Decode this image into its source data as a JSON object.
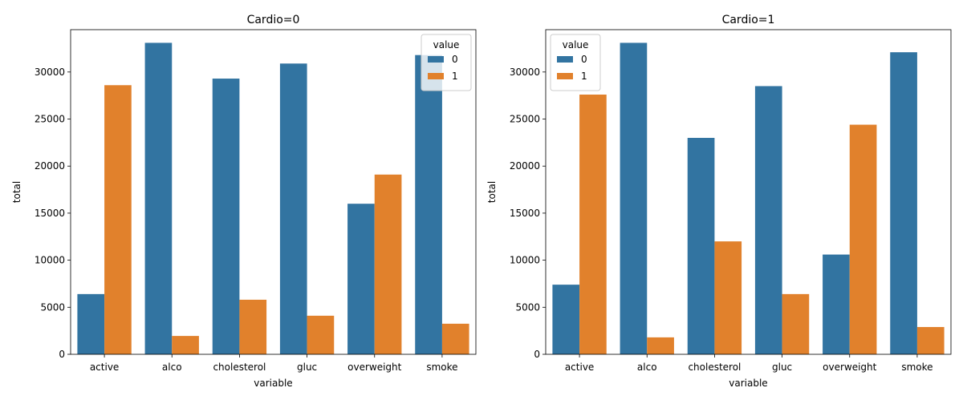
{
  "colors": {
    "series0": "#3274a1",
    "series1": "#e1812c"
  },
  "chart_data": [
    {
      "type": "bar",
      "title": "Cardio=0",
      "xlabel": "variable",
      "ylabel": "total",
      "categories": [
        "active",
        "alco",
        "cholesterol",
        "gluc",
        "overweight",
        "smoke"
      ],
      "ylim": [
        0,
        34500
      ],
      "yticks": [
        0,
        5000,
        10000,
        15000,
        20000,
        25000,
        30000
      ],
      "legend": {
        "title": "value",
        "position": "top-right"
      },
      "series": [
        {
          "name": "0",
          "values": [
            6400,
            33100,
            29300,
            30900,
            16000,
            31800
          ]
        },
        {
          "name": "1",
          "values": [
            28600,
            1950,
            5800,
            4100,
            19100,
            3250
          ]
        }
      ]
    },
    {
      "type": "bar",
      "title": "Cardio=1",
      "xlabel": "variable",
      "ylabel": "total",
      "categories": [
        "active",
        "alco",
        "cholesterol",
        "gluc",
        "overweight",
        "smoke"
      ],
      "ylim": [
        0,
        34500
      ],
      "yticks": [
        0,
        5000,
        10000,
        15000,
        20000,
        25000,
        30000
      ],
      "legend": {
        "title": "value",
        "position": "top-left"
      },
      "series": [
        {
          "name": "0",
          "values": [
            7400,
            33100,
            23000,
            28500,
            10600,
            32100
          ]
        },
        {
          "name": "1",
          "values": [
            27600,
            1800,
            12000,
            6400,
            24400,
            2900
          ]
        }
      ]
    }
  ]
}
